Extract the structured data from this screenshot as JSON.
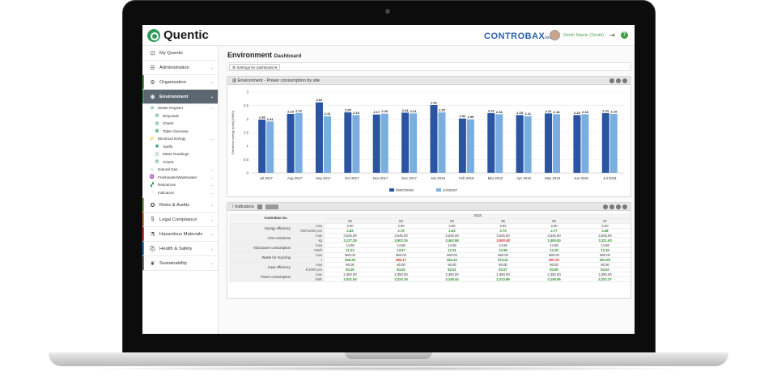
{
  "header": {
    "logo_text": "Quentic",
    "brand": "CONTROBAX",
    "brand_suffix": "Inc.",
    "user_name": "Smith Martin (Smith)"
  },
  "sidebar": {
    "items": [
      {
        "label": "My Quentic",
        "icon": "my-quentic-icon",
        "stripe": ""
      },
      {
        "label": "Administration",
        "icon": "menu-icon",
        "stripe": ""
      },
      {
        "label": "Organization",
        "icon": "gear-icon",
        "stripe": "#43a046"
      },
      {
        "label": "Environment",
        "icon": "globe-icon",
        "stripe": "#2e9b5b",
        "active": true
      }
    ],
    "environment_sub": [
      {
        "label": "Waste Register",
        "icon": "waste-icon",
        "level": 1,
        "chevron": true
      },
      {
        "label": "Disposals",
        "icon": "disposal-icon",
        "level": 2
      },
      {
        "label": "Charts",
        "icon": "chart-icon",
        "level": 2
      },
      {
        "label": "Table Overview",
        "icon": "table-icon",
        "level": 2
      },
      {
        "label": "Electrical Energy",
        "icon": "energy-icon",
        "level": 1,
        "chevron": true
      },
      {
        "label": "Tariffs",
        "icon": "tariff-icon",
        "level": 2
      },
      {
        "label": "Meter Readings",
        "icon": "meter-icon",
        "level": 2
      },
      {
        "label": "Charts",
        "icon": "chart-icon",
        "level": 2
      },
      {
        "label": "Natural Gas",
        "icon": "flame-icon",
        "level": 1,
        "chevron": true
      },
      {
        "label": "Freshwater/Wastewater",
        "icon": "water-icon",
        "level": 1,
        "chevron": true
      },
      {
        "label": "Resources",
        "icon": "resources-icon",
        "level": 1,
        "chevron": true
      },
      {
        "label": "Indicators",
        "icon": "indicator-icon",
        "level": 1,
        "chevron": true
      }
    ],
    "bottom_items": [
      {
        "label": "Risks & Audits",
        "icon": "risk-icon",
        "stripe": "#7cb342"
      },
      {
        "label": "Legal Compliance",
        "icon": "paragraph-icon",
        "stripe": "#e67e22"
      },
      {
        "label": "Hazardous Materials",
        "icon": "flask-icon",
        "stripe": "#e53935"
      },
      {
        "label": "Health & Safety",
        "icon": "helmet-icon",
        "stripe": "#1e88e5"
      },
      {
        "label": "Sustainability",
        "icon": "leaf-icon",
        "stripe": "#777777"
      }
    ]
  },
  "main": {
    "title": "Environment",
    "subtitle": "Dashboard",
    "settings_button": "Settings for dashboard"
  },
  "chart_panel": {
    "title": "Environment - Power consumption by site"
  },
  "chart_data": {
    "type": "bar",
    "ylabel": "Electrical energy (total) [MWh]",
    "ylim": [
      0,
      3
    ],
    "yticks": [
      0,
      0.5,
      1,
      1.5,
      2,
      2.5,
      3
    ],
    "categories": [
      "Jul 2017",
      "Aug 2017",
      "Sep 2017",
      "Oct 2017",
      "Nov 2017",
      "Dec 2017",
      "Jan 2018",
      "Feb 2018",
      "Mar 2018",
      "Apr 2018",
      "May 2018",
      "Jun 2018",
      "Jul 2018"
    ],
    "series": [
      {
        "name": "Manchester",
        "color": "#2b55a3",
        "values": [
          1.98,
          2.19,
          2.62,
          2.25,
          2.17,
          2.24,
          2.52,
          2.02,
          2.22,
          2.15,
          2.21,
          2.15,
          2.22
        ]
      },
      {
        "name": "Liverpool",
        "color": "#7aaee0",
        "values": [
          1.91,
          2.22,
          2.11,
          2.15,
          2.2,
          2.21,
          2.25,
          1.99,
          2.18,
          2.11,
          2.18,
          2.18,
          2.19
        ]
      }
    ]
  },
  "indicators": {
    "title": "Indicators",
    "company": "Controbax Inc.",
    "year": "2018",
    "months": [
      "02",
      "03",
      "04",
      "05",
      "06",
      "07"
    ],
    "rows": [
      {
        "label": "Energy efficiency",
        "sub": [
          {
            "unit": "max",
            "values": [
              "3.00",
              "3.00",
              "3.00",
              "3.00",
              "3.00",
              "3.00"
            ],
            "style": ""
          },
          {
            "unit": "kWh/1000 pcs",
            "values": [
              "2.82",
              "2.75",
              "2.63",
              "2.73",
              "2.77",
              "2.68"
            ],
            "style": "green"
          }
        ]
      },
      {
        "label": "CO2 emissions",
        "sub": [
          {
            "unit": "max",
            "values": [
              "3,545.00",
              "3,545.00",
              "3,545.00",
              "3,545.00",
              "3,545.00",
              "3,545.00"
            ],
            "style": ""
          },
          {
            "unit": "kg",
            "values": [
              "3,127.28",
              "3,502.25",
              "3,462.98",
              "3,550.48",
              "3,405.50",
              "3,321.63"
            ],
            "style": "green",
            "red_index": 3
          }
        ]
      },
      {
        "label": "Total power consumption",
        "sub": [
          {
            "unit": "max",
            "values": [
              "14.58",
              "14.58",
              "14.58",
              "14.58",
              "14.58",
              "14.58"
            ],
            "style": ""
          },
          {
            "unit": "MWh",
            "values": [
              "11.23",
              "13.67",
              "12.31",
              "12.96",
              "12.25",
              "12.16"
            ],
            "style": "green"
          }
        ]
      },
      {
        "label": "Waste for recycling",
        "sub": [
          {
            "unit": "max",
            "values": [
              "580.00",
              "580.00",
              "580.00",
              "580.00",
              "580.00",
              "580.00"
            ],
            "style": ""
          },
          {
            "unit": "t",
            "values": [
              "546.25",
              "594.17",
              "563.42",
              "574.41",
              "597.22",
              "561.69"
            ],
            "style": "green",
            "red_index": [
              1,
              4
            ]
          }
        ]
      },
      {
        "label": "Input efficiency",
        "sub": [
          {
            "unit": "max",
            "values": [
              "90.00",
              "90.00",
              "90.00",
              "90.00",
              "90.00",
              "90.00"
            ],
            "style": ""
          },
          {
            "unit": "€/1000 pcs",
            "values": [
              "84.30",
              "84.92",
              "82.61",
              "83.57",
              "83.80",
              "84.52"
            ],
            "style": "green"
          }
        ]
      },
      {
        "label": "Power consumption",
        "sub": [
          {
            "unit": "max",
            "values": [
              "2,350.00",
              "2,350.00",
              "2,350.00",
              "2,350.00",
              "2,350.00",
              "2,350.00"
            ],
            "style": ""
          },
          {
            "unit": "kWh",
            "values": [
              "2,021.53",
              "2,223.19",
              "2,148.44",
              "2,213.98",
              "2,149.06",
              "2,221.27"
            ],
            "style": "green"
          }
        ]
      }
    ]
  }
}
